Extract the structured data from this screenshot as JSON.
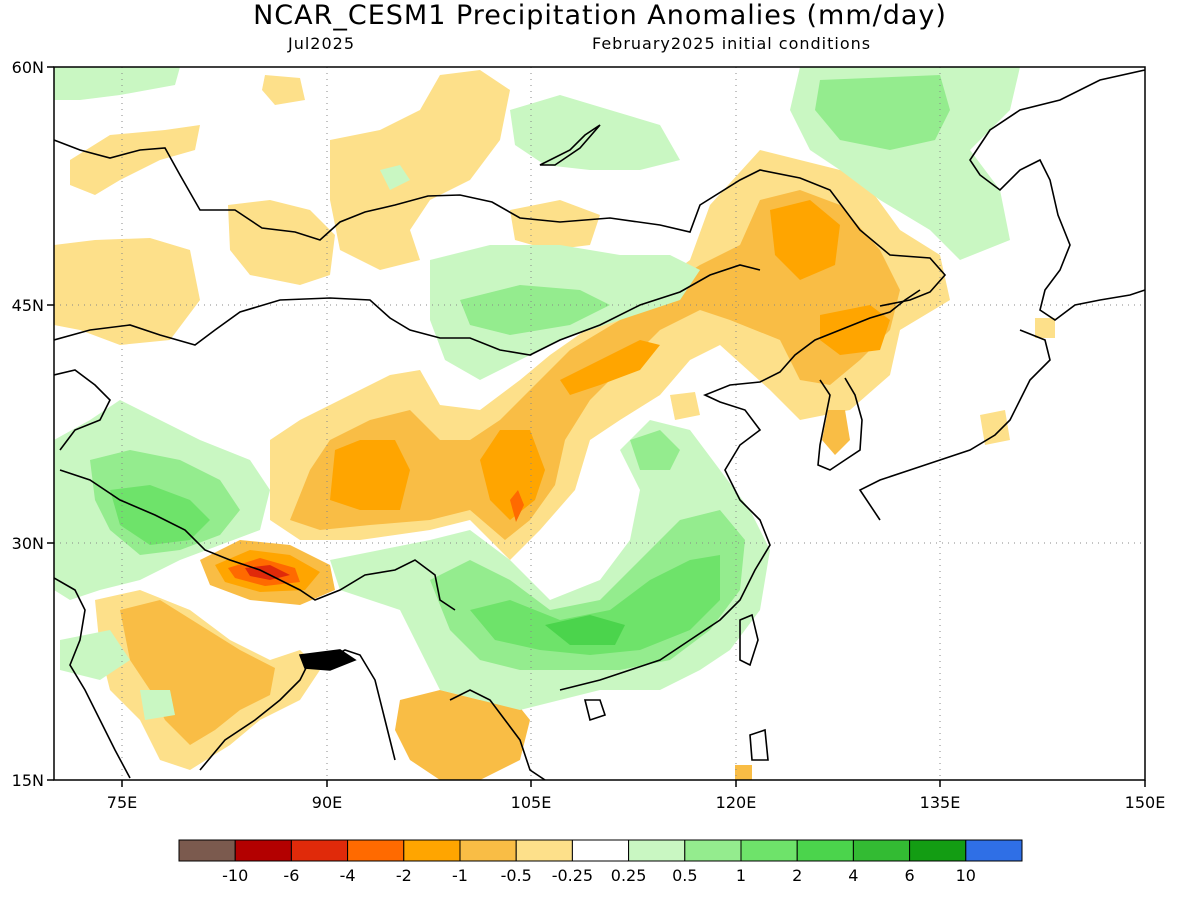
{
  "header": {
    "title": "NCAR_CESM1 Precipitation Anomalies (mm/day)",
    "target_month": "Jul2025",
    "init_conditions": "February2025 initial conditions"
  },
  "map": {
    "region": "East and South Asia",
    "lon_range": [
      70,
      150
    ],
    "lat_range": [
      15,
      60
    ],
    "lat_labels": [
      "15N",
      "30N",
      "45N",
      "60N"
    ],
    "lon_labels": [
      "75E",
      "90E",
      "105E",
      "120E",
      "135E",
      "150E"
    ],
    "gridlines": "dotted"
  },
  "legend": {
    "colors": [
      "#7b5a4e",
      "#b30000",
      "#e02a0a",
      "#ff6a00",
      "#ffa500",
      "#f9bd45",
      "#fde08a",
      "#ffffff",
      "#c9f7c2",
      "#94ec8e",
      "#6ee36a",
      "#4bd44c",
      "#33bb33",
      "#139d13",
      "#2f6fe6"
    ],
    "labels": [
      "-10",
      "-6",
      "-4",
      "-2",
      "-1",
      "-0.5",
      "-0.25",
      "0.25",
      "0.5",
      "1",
      "2",
      "4",
      "6",
      "10"
    ]
  }
}
